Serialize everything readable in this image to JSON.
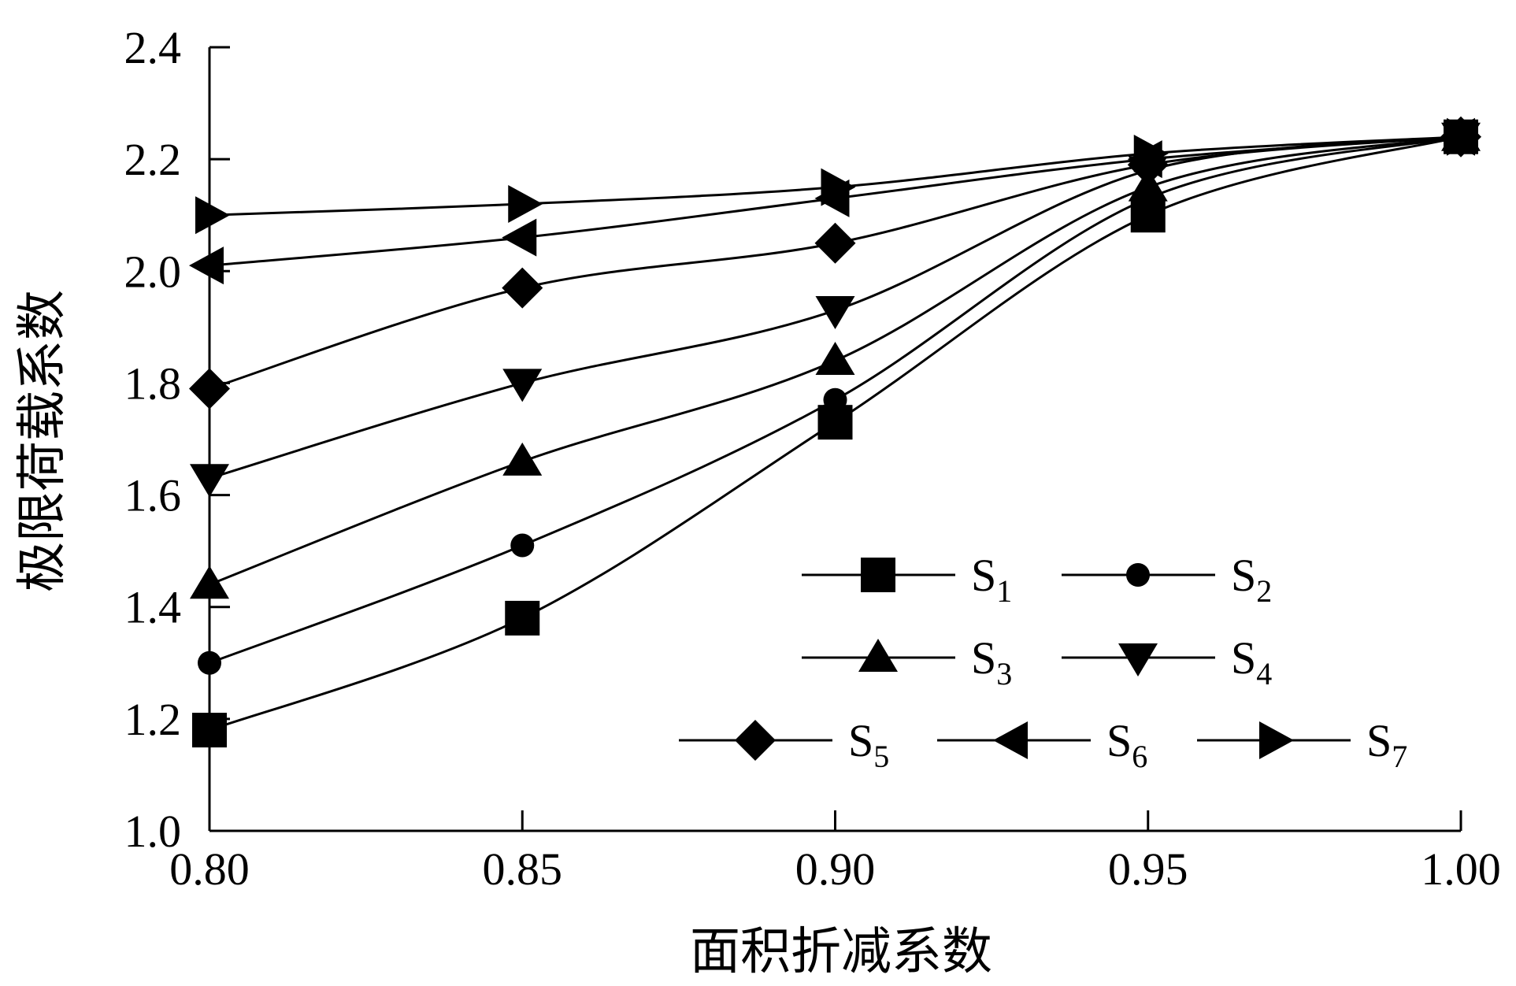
{
  "chart_data": {
    "type": "line",
    "xlabel": "面积折减系数",
    "ylabel": "极限荷载系数",
    "x": [
      0.8,
      0.85,
      0.9,
      0.95,
      1.0
    ],
    "xlim": [
      0.8,
      1.0
    ],
    "ylim": [
      1.0,
      2.4
    ],
    "x_ticks": [
      "0.80",
      "0.85",
      "0.90",
      "0.95",
      "1.00"
    ],
    "y_ticks": [
      "1.0",
      "1.2",
      "1.4",
      "1.6",
      "1.8",
      "2.0",
      "2.2",
      "2.4"
    ],
    "grid": false,
    "legend_placement": "bottom-right",
    "series": [
      {
        "name": "S1",
        "label_main": "S",
        "label_sub": "1",
        "marker": "square",
        "values": [
          1.18,
          1.38,
          1.73,
          2.1,
          2.24
        ]
      },
      {
        "name": "S2",
        "label_main": "S",
        "label_sub": "2",
        "marker": "circle",
        "values": [
          1.3,
          1.51,
          1.77,
          2.13,
          2.24
        ]
      },
      {
        "name": "S3",
        "label_main": "S",
        "label_sub": "3",
        "marker": "triangle-up",
        "values": [
          1.44,
          1.66,
          1.84,
          2.15,
          2.24
        ]
      },
      {
        "name": "S4",
        "label_main": "S",
        "label_sub": "4",
        "marker": "triangle-down",
        "values": [
          1.63,
          1.8,
          1.93,
          2.18,
          2.24
        ]
      },
      {
        "name": "S5",
        "label_main": "S",
        "label_sub": "5",
        "marker": "diamond",
        "values": [
          1.79,
          1.97,
          2.05,
          2.19,
          2.24
        ]
      },
      {
        "name": "S6",
        "label_main": "S",
        "label_sub": "6",
        "marker": "triangle-left",
        "values": [
          2.01,
          2.06,
          2.13,
          2.2,
          2.24
        ]
      },
      {
        "name": "S7",
        "label_main": "S",
        "label_sub": "7",
        "marker": "triangle-right",
        "values": [
          2.1,
          2.12,
          2.15,
          2.21,
          2.24
        ]
      }
    ]
  }
}
